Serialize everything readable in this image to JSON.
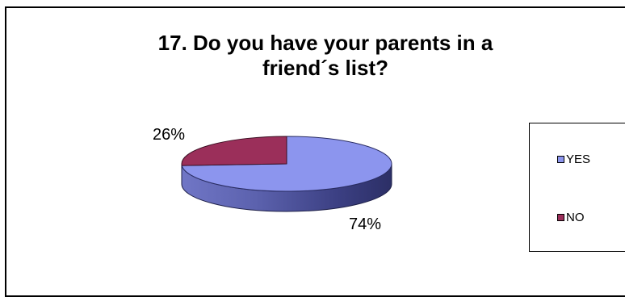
{
  "chart_data": {
    "type": "pie",
    "title": "17. Do you have your parents in a\nfriend´s list?",
    "categories": [
      "YES",
      "NO"
    ],
    "values": [
      74,
      26
    ],
    "labels": [
      "74%",
      "26%"
    ],
    "colors": {
      "YES": "#8C95EE",
      "NO": "#9B2F5A"
    },
    "legend": {
      "position": "right",
      "entries": [
        "YES",
        "NO"
      ]
    },
    "style": "3d"
  }
}
